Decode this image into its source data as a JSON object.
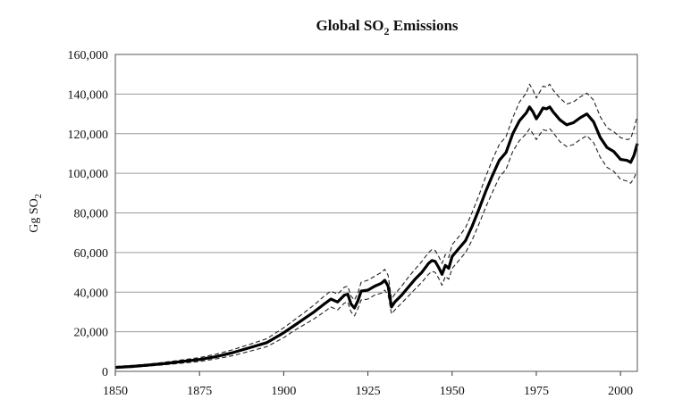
{
  "chart_data": {
    "type": "line",
    "title": {
      "pre": "Global SO",
      "sub": "2",
      "post": " Emissions"
    },
    "ylabel": {
      "pre": "Gg SO",
      "sub": "2"
    },
    "xlabel": "",
    "xlim": [
      1850,
      2005
    ],
    "ylim": [
      0,
      160000
    ],
    "x_ticks": [
      1850,
      1875,
      1900,
      1925,
      1950,
      1975,
      2000
    ],
    "x_tick_labels": [
      "1850",
      "1875",
      "1900",
      "1925",
      "1950",
      "1975",
      "2000"
    ],
    "y_ticks": [
      0,
      20000,
      40000,
      60000,
      80000,
      100000,
      120000,
      140000,
      160000
    ],
    "y_tick_labels": [
      "0",
      "20,000",
      "40,000",
      "60,000",
      "80,000",
      "100,000",
      "120,000",
      "140,000",
      "160,000"
    ],
    "grid": "horizontal",
    "legend": "none",
    "colors": {
      "central": "#000000",
      "bounds": "#222222",
      "grid": "#9a9a9a"
    },
    "x": [
      1850,
      1855,
      1860,
      1865,
      1870,
      1875,
      1880,
      1885,
      1890,
      1895,
      1900,
      1903,
      1906,
      1909,
      1912,
      1914,
      1916,
      1918,
      1919,
      1920,
      1921,
      1922,
      1923,
      1925,
      1927,
      1929,
      1930,
      1931,
      1932,
      1933,
      1935,
      1937,
      1939,
      1941,
      1943,
      1944,
      1945,
      1946,
      1947,
      1948,
      1949,
      1950,
      1952,
      1954,
      1956,
      1958,
      1960,
      1962,
      1964,
      1966,
      1968,
      1970,
      1972,
      1973,
      1974,
      1975,
      1976,
      1977,
      1978,
      1979,
      1980,
      1982,
      1984,
      1986,
      1988,
      1990,
      1992,
      1994,
      1996,
      1998,
      2000,
      2002,
      2003,
      2004,
      2005
    ],
    "series": [
      {
        "values": [
          2000,
          2500,
          3200,
          4000,
          5000,
          6000,
          7500,
          9500,
          12000,
          14500,
          19500,
          23000,
          26500,
          30000,
          34000,
          36500,
          35000,
          38500,
          39000,
          34000,
          32000,
          35500,
          40500,
          41000,
          43000,
          44500,
          46000,
          43000,
          32500,
          35000,
          38500,
          42500,
          46500,
          50000,
          54500,
          56000,
          55500,
          52500,
          49000,
          53500,
          52000,
          58000,
          62000,
          66000,
          73500,
          82000,
          91000,
          99000,
          106500,
          110500,
          120000,
          126500,
          130500,
          133500,
          131000,
          127500,
          130000,
          133000,
          132500,
          133500,
          131000,
          127000,
          124500,
          125500,
          128000,
          130000,
          126000,
          118000,
          113000,
          111000,
          107000,
          106500,
          105500,
          109000,
          115000
        ]
      },
      {
        "values": [
          2500,
          3000,
          3700,
          4700,
          5800,
          7000,
          8700,
          11000,
          13700,
          16500,
          22000,
          25800,
          29500,
          33500,
          38000,
          40500,
          39000,
          42500,
          43000,
          38000,
          36000,
          39500,
          45000,
          46000,
          48000,
          50000,
          51500,
          48500,
          36500,
          39000,
          43000,
          47500,
          51500,
          55500,
          60000,
          61500,
          61000,
          58000,
          54500,
          59000,
          57500,
          64000,
          68000,
          72500,
          80500,
          89000,
          98500,
          107000,
          114500,
          118500,
          128000,
          136000,
          140500,
          145000,
          142000,
          138000,
          141000,
          144000,
          143500,
          145000,
          142000,
          138000,
          135000,
          136000,
          138500,
          140500,
          137000,
          128500,
          123000,
          121000,
          118000,
          117000,
          117500,
          122500,
          129000
        ]
      },
      {
        "values": [
          1600,
          2000,
          2700,
          3400,
          4200,
          5000,
          6300,
          8000,
          10200,
          12500,
          17000,
          20500,
          23500,
          26500,
          30000,
          32500,
          31000,
          34500,
          35000,
          30000,
          28000,
          31500,
          36000,
          36500,
          38500,
          39500,
          41000,
          38500,
          29000,
          31000,
          34500,
          38000,
          41500,
          45000,
          49000,
          50500,
          50000,
          47000,
          43500,
          48000,
          46500,
          52000,
          56000,
          60000,
          66500,
          74500,
          83000,
          90500,
          98000,
          102000,
          111000,
          116500,
          120000,
          122500,
          120000,
          117000,
          119500,
          122000,
          121500,
          122500,
          120500,
          116000,
          113500,
          114500,
          117000,
          119000,
          115500,
          108000,
          103000,
          101000,
          97000,
          96000,
          95000,
          97500,
          101500
        ]
      }
    ]
  }
}
